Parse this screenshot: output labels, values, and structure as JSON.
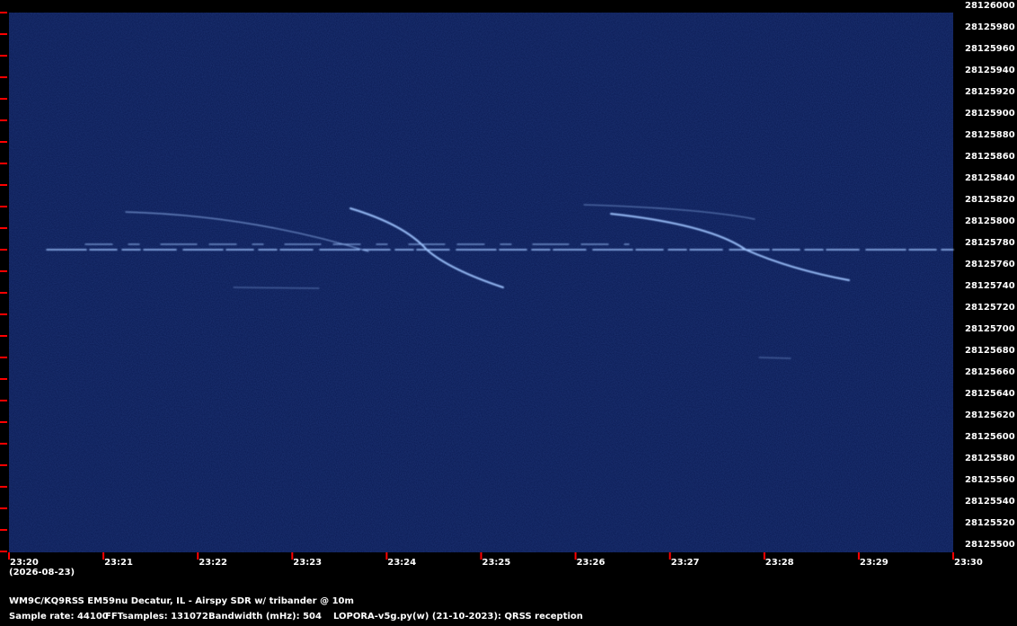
{
  "chart_data": {
    "type": "spectrogram",
    "date": "(2026-08-23)",
    "xtick_labels": [
      "23:20",
      "23:21",
      "23:22",
      "23:23",
      "23:24",
      "23:25",
      "23:26",
      "23:27",
      "23:28",
      "23:29",
      "23:30"
    ],
    "ylim": [
      28125500,
      28126000
    ],
    "yticks": [
      28125500,
      28125520,
      28125540,
      28125560,
      28125580,
      28125600,
      28125620,
      28125640,
      28125660,
      28125680,
      28125700,
      28125720,
      28125740,
      28125760,
      28125780,
      28125800,
      28125820,
      28125840,
      28125860,
      28125880,
      28125900,
      28125920,
      28125940,
      28125960,
      28125980,
      28126000
    ],
    "tick_color": "#ff0000",
    "station": "WM9C/KQ9RSS EM59nu Decatur, IL - Airspy SDR w/ tribander @ 10m",
    "info": [
      "Sample rate: 44100",
      "FFTsamples: 131072",
      "Bandwidth (mHz): 504",
      "LOPORA-v5g.py(w) (21-10-2023): QRSS reception"
    ]
  }
}
